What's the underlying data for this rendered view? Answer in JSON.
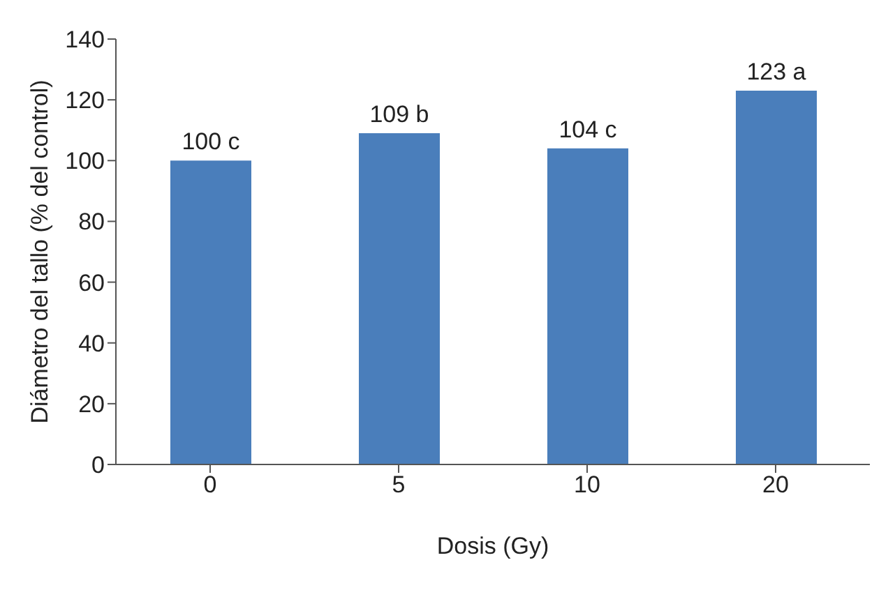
{
  "chart_data": {
    "type": "bar",
    "xlabel": "Dosis (Gy)",
    "ylabel": "Diámetro del tallo (% del control)",
    "categories": [
      "0",
      "5",
      "10",
      "20"
    ],
    "values": [
      100,
      109,
      104,
      123
    ],
    "value_labels": [
      "100 c",
      "109 b",
      "104 c",
      "123 a"
    ],
    "color": "#4a7ebb",
    "ylim": [
      0,
      140
    ],
    "yticks": [
      0,
      20,
      40,
      60,
      80,
      100,
      120,
      140
    ],
    "grid": false,
    "legend": false
  }
}
